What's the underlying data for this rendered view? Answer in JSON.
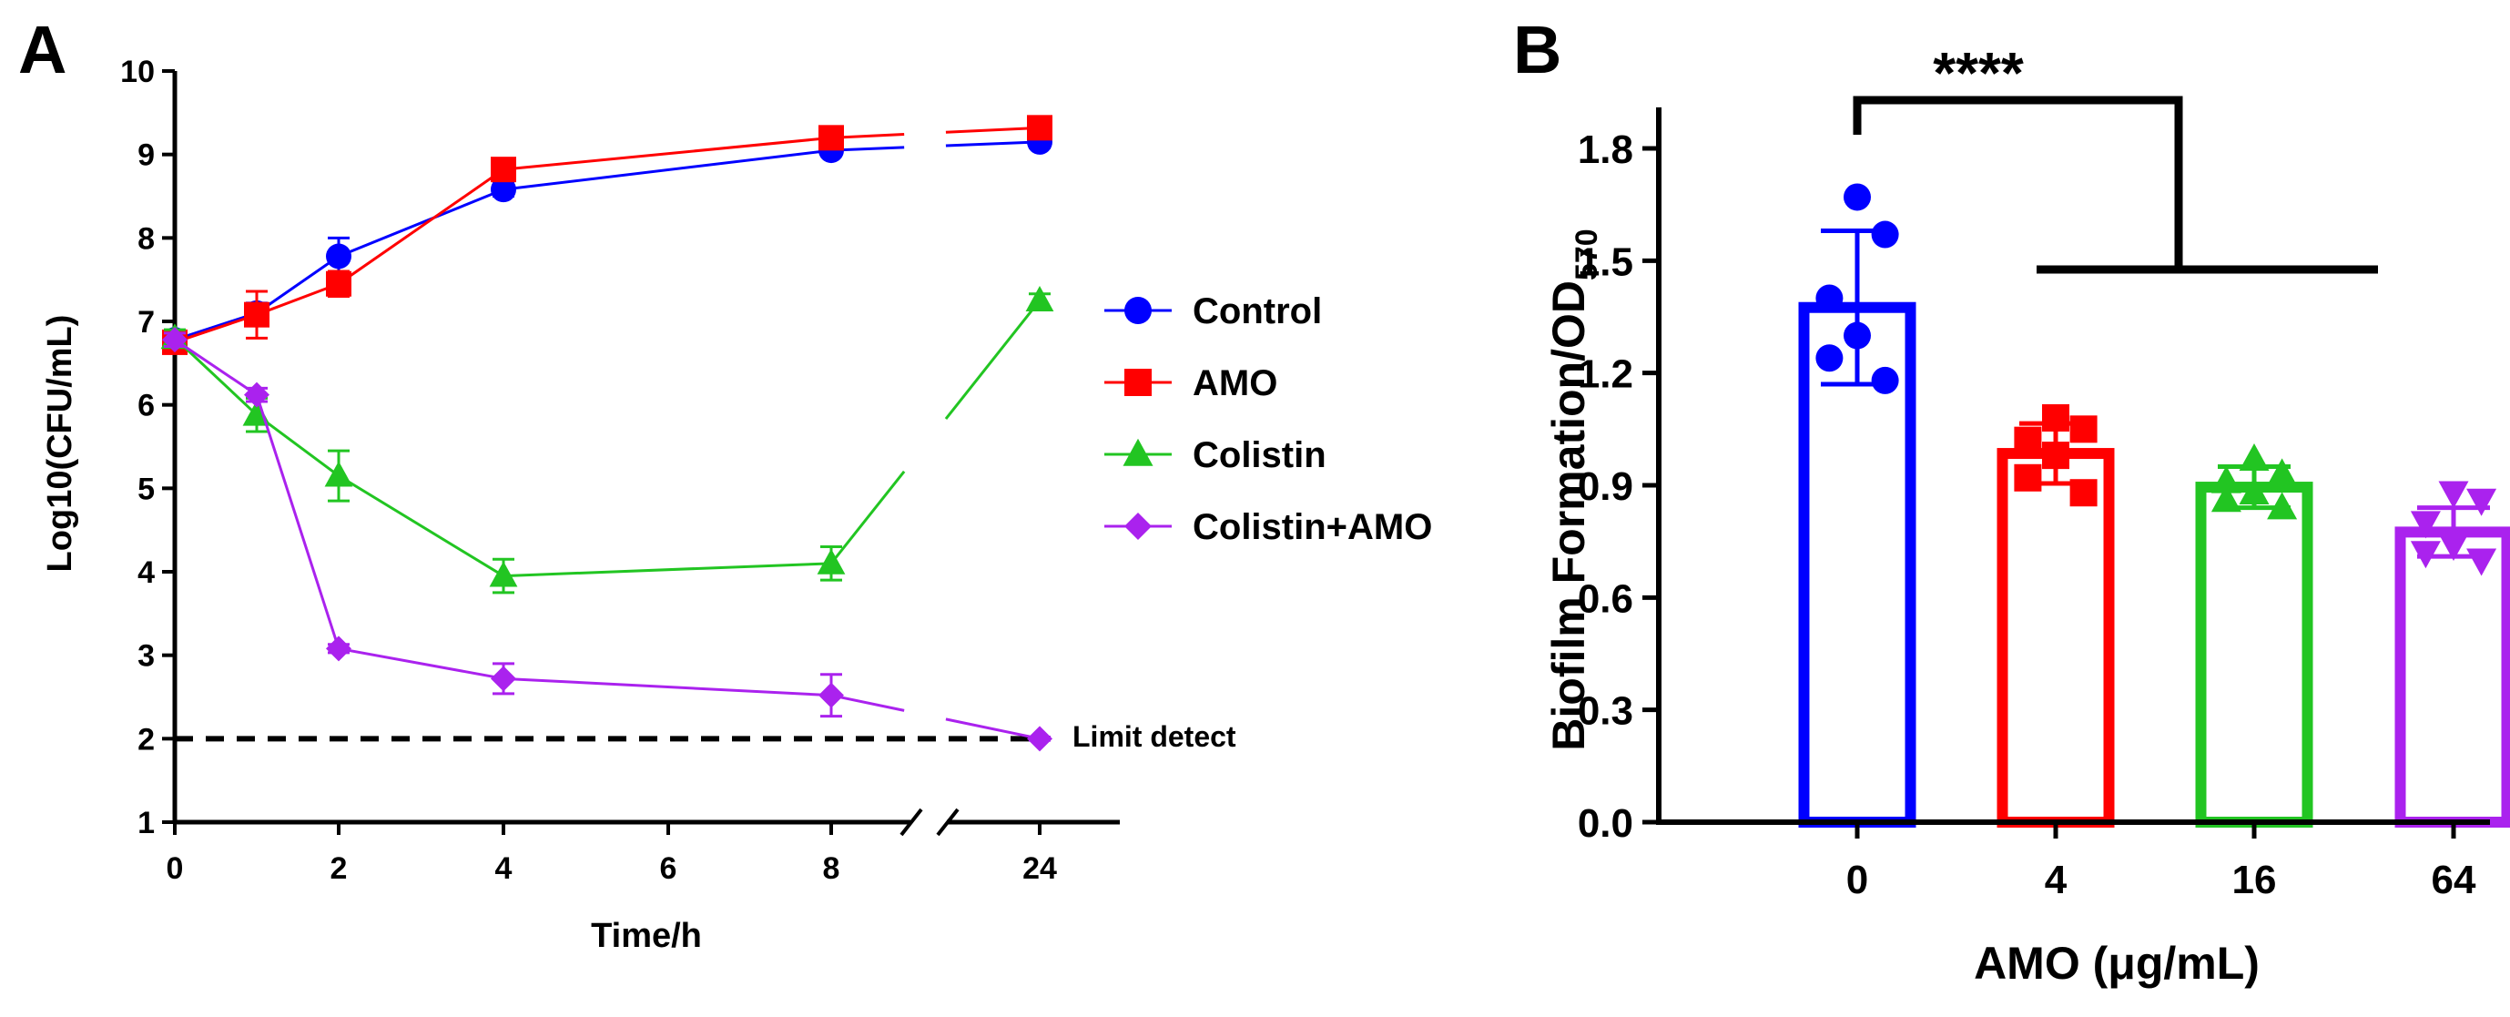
{
  "figure": {
    "panel_a_label": "A",
    "panel_b_label": "B"
  },
  "chart_data": [
    {
      "type": "line",
      "panel": "A",
      "xlabel": "Time/h",
      "ylabel": "Log10(CFU/mL)",
      "x_ticks": [
        0,
        2,
        4,
        6,
        8,
        24
      ],
      "y_ticks": [
        1,
        2,
        3,
        4,
        5,
        6,
        7,
        8,
        9,
        10
      ],
      "ylim": [
        1,
        10
      ],
      "x_axis_break": "between 8 and 24",
      "grid": false,
      "legend_position": "right",
      "series": [
        {
          "name": "Control",
          "color": "#0000ff",
          "marker": "circle",
          "x": [
            0,
            1,
            2,
            4,
            8,
            24
          ],
          "y": [
            6.78,
            7.1,
            7.78,
            8.58,
            9.05,
            9.15
          ],
          "err": [
            0.1,
            0.12,
            0.22,
            0.08,
            0.06,
            0.07
          ]
        },
        {
          "name": "AMO",
          "color": "#ff0000",
          "marker": "square",
          "x": [
            0,
            1,
            2,
            4,
            8,
            24
          ],
          "y": [
            6.75,
            7.08,
            7.45,
            8.82,
            9.2,
            9.32
          ],
          "err": [
            0.1,
            0.28,
            0.15,
            0.08,
            0.05,
            0.06
          ]
        },
        {
          "name": "Colistin",
          "color": "#22c522",
          "marker": "triangle",
          "x": [
            0,
            1,
            2,
            4,
            8,
            24
          ],
          "y": [
            6.8,
            5.88,
            5.15,
            3.95,
            4.1,
            7.25
          ],
          "err": [
            0.1,
            0.2,
            0.3,
            0.2,
            0.2,
            0.08
          ]
        },
        {
          "name": "Colistin+AMO",
          "color": "#aa22ee",
          "marker": "diamond",
          "x": [
            0,
            1,
            2,
            4,
            8,
            24
          ],
          "y": [
            6.78,
            6.12,
            3.08,
            2.72,
            2.52,
            2.0
          ],
          "err": [
            0.08,
            0.08,
            0.05,
            0.18,
            0.25,
            0.02
          ]
        }
      ],
      "reference_line": {
        "y": 2,
        "style": "dashed",
        "label": "Limit detect"
      }
    },
    {
      "type": "bar",
      "panel": "B",
      "xlabel": "AMO (μg/mL)",
      "ylabel_main": "Biofilm Formation/OD",
      "ylabel_subscript": "570",
      "categories": [
        "0",
        "4",
        "16",
        "64"
      ],
      "values": [
        1.375,
        0.985,
        0.895,
        0.775
      ],
      "sd": [
        0.205,
        0.08,
        0.055,
        0.065
      ],
      "colors": [
        "#0000ff",
        "#ff0000",
        "#22c522",
        "#aa22ee"
      ],
      "markers": [
        "circle",
        "square",
        "triangle",
        "triangle-down"
      ],
      "points": [
        [
          1.67,
          1.57,
          1.4,
          1.3,
          1.24,
          1.18
        ],
        [
          1.08,
          1.05,
          1.02,
          0.98,
          0.92,
          0.88
        ],
        [
          0.97,
          0.93,
          0.91,
          0.88,
          0.86,
          0.84
        ],
        [
          0.88,
          0.86,
          0.8,
          0.74,
          0.72,
          0.7
        ]
      ],
      "y_ticks": [
        0.0,
        0.3,
        0.6,
        0.9,
        1.2,
        1.5,
        1.8
      ],
      "y_tick_labels": [
        "0.0",
        "0.3",
        "0.6",
        "0.9",
        "1.2",
        "1.5",
        "1.8"
      ],
      "ylim": [
        0,
        1.9
      ],
      "significance": {
        "label": "****",
        "from": "0",
        "to": [
          "4",
          "16",
          "64"
        ]
      }
    }
  ]
}
